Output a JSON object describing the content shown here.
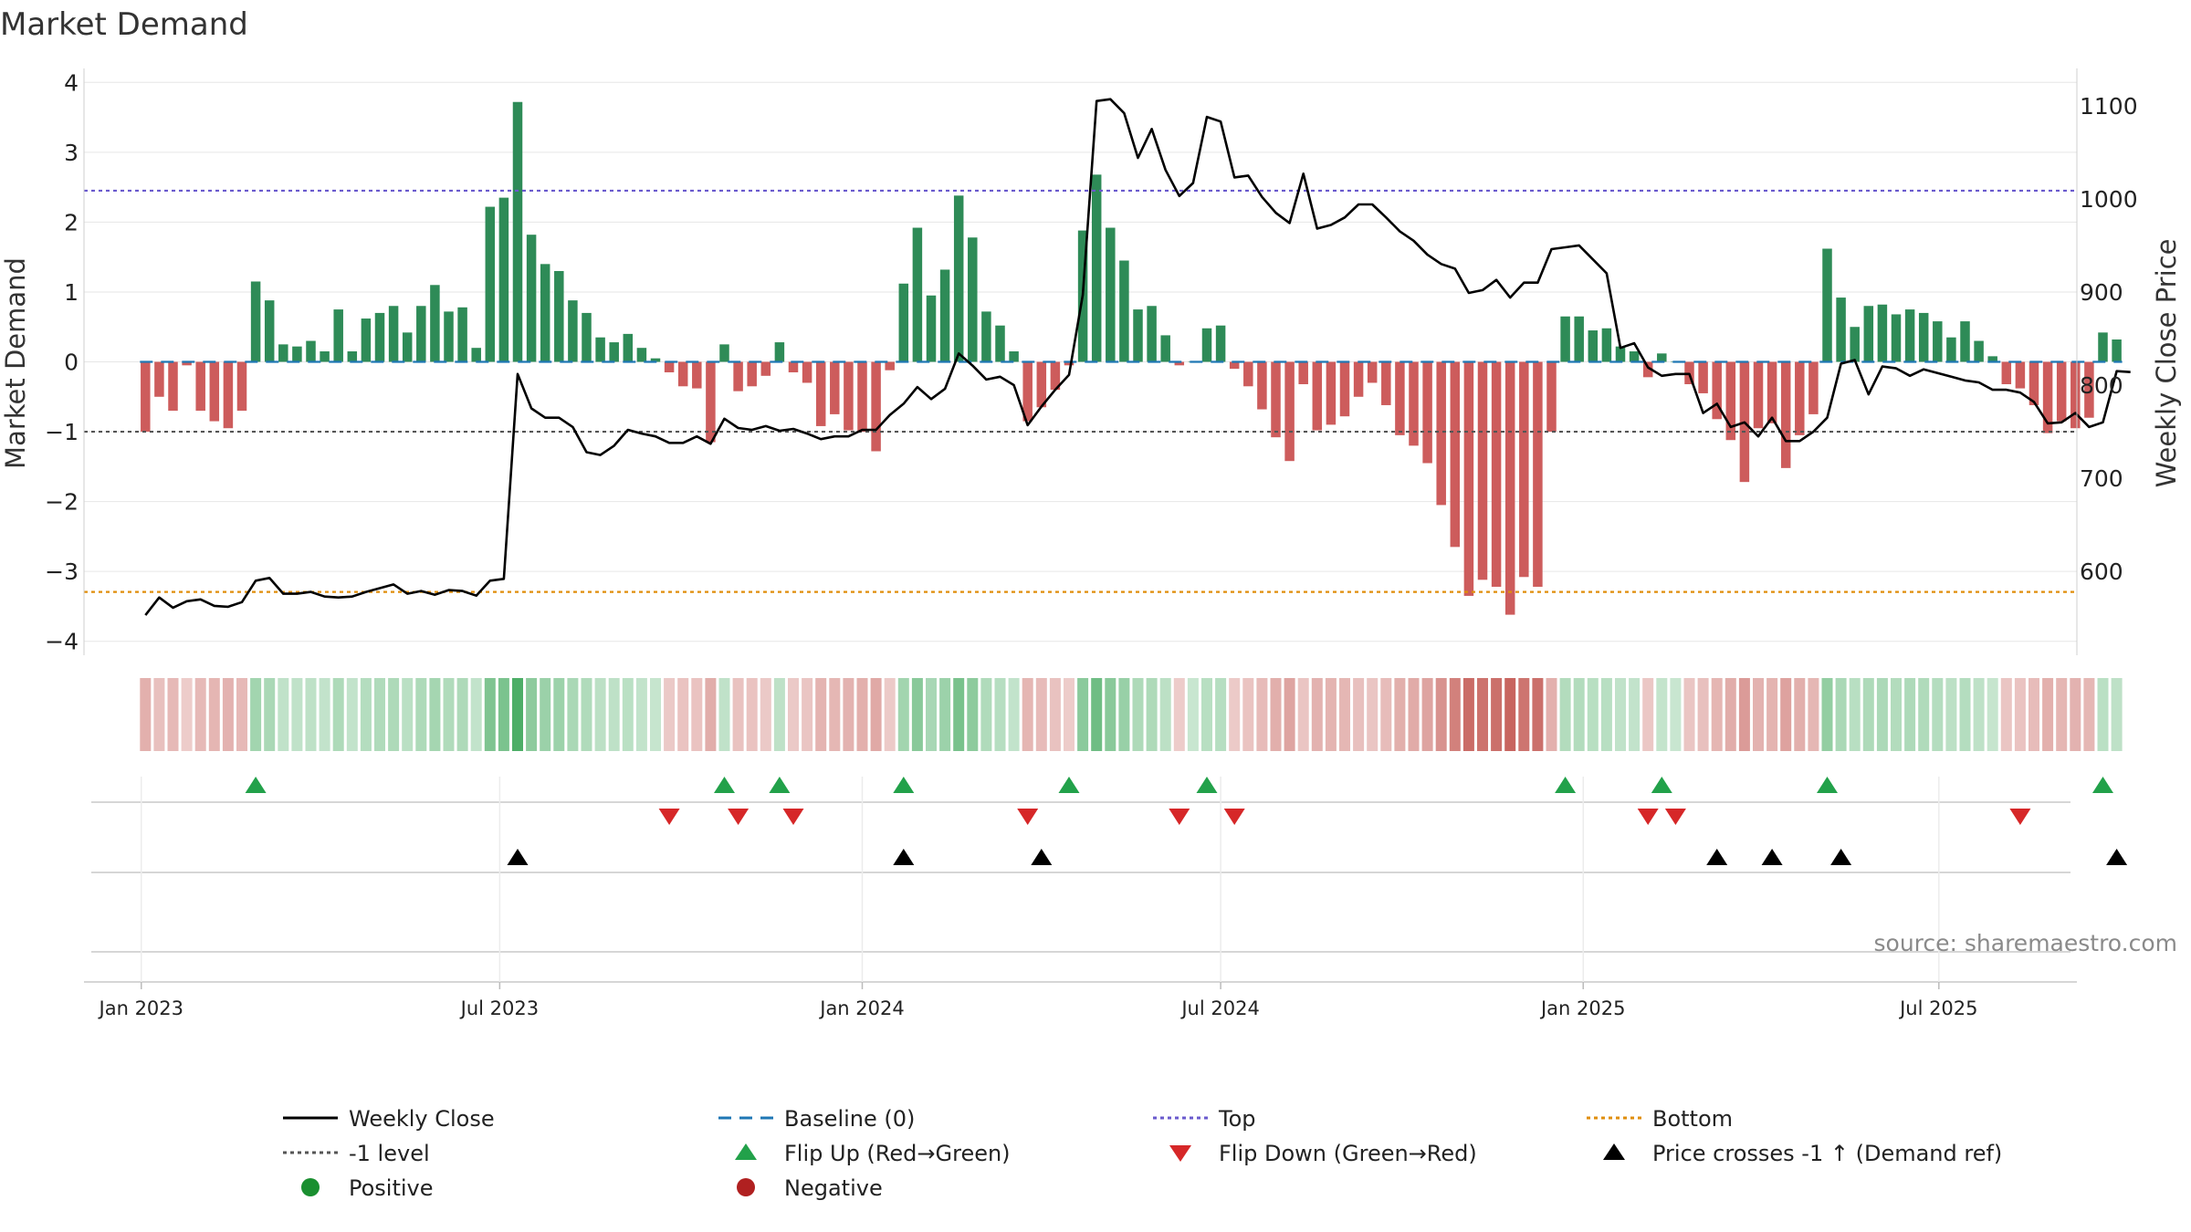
{
  "chart_data": {
    "type": "bar+line",
    "title": "Market Demand",
    "ylabel_left": "Market Demand",
    "ylabel_right": "Weekly Close Price",
    "ylim_left": [
      -4.2,
      4.2
    ],
    "ylim_right": [
      510,
      1140
    ],
    "yticks_left": [
      "4",
      "3",
      "2",
      "1",
      "0",
      "−1",
      "−2",
      "−3",
      "−4"
    ],
    "ytick_values_left": [
      4,
      3,
      2,
      1,
      0,
      -1,
      -2,
      -3,
      -4
    ],
    "yticks_right": [
      "1100",
      "1000",
      "900",
      "800",
      "700",
      "600"
    ],
    "ytick_values_right": [
      1100,
      1000,
      900,
      800,
      700,
      600
    ],
    "x_range_weeks": [
      -3,
      147
    ],
    "x_ticks": [
      {
        "label": "Jan 2023",
        "week": -0.3
      },
      {
        "label": "Jul 2023",
        "week": 25.7
      },
      {
        "label": "Jan 2024",
        "week": 52
      },
      {
        "label": "Jul 2024",
        "week": 78
      },
      {
        "label": "Jan 2025",
        "week": 104.3
      },
      {
        "label": "Jul 2025",
        "week": 130.1
      }
    ],
    "reference_lines": {
      "top": 2.45,
      "minus_one": -1,
      "bottom_price": 578,
      "baseline": 0
    },
    "demand": [
      -1.0,
      -0.5,
      -0.7,
      -0.05,
      -0.7,
      -0.85,
      -0.95,
      -0.7,
      1.15,
      0.88,
      0.25,
      0.22,
      0.3,
      0.15,
      0.75,
      0.15,
      0.62,
      0.7,
      0.8,
      0.42,
      0.8,
      1.1,
      0.72,
      0.78,
      0.2,
      2.22,
      2.35,
      3.72,
      1.82,
      1.4,
      1.3,
      0.88,
      0.7,
      0.35,
      0.28,
      0.4,
      0.2,
      0.05,
      -0.15,
      -0.35,
      -0.38,
      -1.15,
      0.25,
      -0.42,
      -0.35,
      -0.2,
      0.28,
      -0.15,
      -0.3,
      -0.92,
      -0.75,
      -0.98,
      -1.0,
      -1.28,
      -0.12,
      1.12,
      1.92,
      0.95,
      1.32,
      2.38,
      1.78,
      0.72,
      0.52,
      0.15,
      -0.85,
      -0.65,
      -0.4,
      -0.05,
      1.88,
      2.68,
      1.92,
      1.45,
      0.75,
      0.8,
      0.38,
      -0.05,
      0.0,
      0.48,
      0.52,
      -0.1,
      -0.35,
      -0.68,
      -1.08,
      -1.42,
      -0.32,
      -0.98,
      -0.9,
      -0.78,
      -0.5,
      -0.3,
      -0.62,
      -1.05,
      -1.2,
      -1.45,
      -2.05,
      -2.65,
      -3.35,
      -3.12,
      -3.22,
      -3.62,
      -3.08,
      -3.22,
      -1.0,
      0.65,
      0.65,
      0.45,
      0.48,
      0.22,
      0.15,
      -0.22,
      0.12,
      0.0,
      -0.32,
      -0.45,
      -0.82,
      -1.12,
      -1.72,
      -0.95,
      -0.88,
      -1.52,
      -1.05,
      -0.75,
      1.62,
      0.92,
      0.5,
      0.8,
      0.82,
      0.68,
      0.75,
      0.7,
      0.58,
      0.35,
      0.58,
      0.3,
      0.08,
      -0.32,
      -0.38,
      -0.62,
      -1.02,
      -0.85,
      -0.95,
      -0.8,
      0.42,
      0.32
    ],
    "weekly_close": [
      553,
      572,
      561,
      568,
      570,
      563,
      562,
      567,
      590,
      593,
      576,
      576,
      578,
      573,
      572,
      573,
      578,
      582,
      586,
      576,
      579,
      575,
      580,
      579,
      574,
      590,
      592,
      812,
      775,
      765,
      765,
      755,
      728,
      725,
      735,
      752,
      748,
      745,
      738,
      738,
      745,
      737,
      764,
      754,
      752,
      756,
      751,
      753,
      748,
      742,
      745,
      745,
      752,
      752,
      768,
      780,
      798,
      785,
      796,
      834,
      821,
      806,
      809,
      800,
      757,
      777,
      795,
      811,
      897,
      1105,
      1107,
      1092,
      1044,
      1075,
      1031,
      1003,
      1017,
      1088,
      1083,
      1023,
      1025,
      1002,
      985,
      974,
      1027,
      968,
      972,
      980,
      994,
      994,
      980,
      965,
      955,
      940,
      930,
      925,
      899,
      902,
      913,
      894,
      910,
      910,
      946,
      948,
      950,
      935,
      920,
      840,
      845,
      819,
      810,
      812,
      812,
      770,
      780,
      755,
      760,
      745,
      765,
      740,
      740,
      750,
      765,
      823,
      827,
      790,
      820,
      818,
      810,
      817,
      813,
      809,
      805,
      803,
      795,
      795,
      792,
      782,
      759,
      760,
      770,
      755,
      760,
      815,
      814
    ],
    "flip_up_weeks": [
      8,
      42,
      46,
      55,
      67,
      77,
      103,
      110,
      122,
      142
    ],
    "flip_down_weeks": [
      38,
      43,
      47,
      64,
      75,
      79,
      109,
      111,
      136
    ],
    "price_cross_weeks": [
      27,
      55,
      65,
      114,
      118,
      123,
      143
    ],
    "legend": [
      {
        "label": "Weekly Close",
        "style": "solid-line",
        "color": "#000000"
      },
      {
        "label": "Baseline (0)",
        "style": "dash-line",
        "color": "#1f77b4"
      },
      {
        "label": "Top",
        "style": "dot-line",
        "color": "#6a5acd"
      },
      {
        "label": "Bottom",
        "style": "dot-line",
        "color": "#e08e0b"
      },
      {
        "label": "-1 level",
        "style": "dot-line",
        "color": "#555555"
      },
      {
        "label": "Flip Up (Red→Green)",
        "style": "triangle-up",
        "color": "#22a14a"
      },
      {
        "label": "Flip Down (Green→Red)",
        "style": "triangle-down",
        "color": "#d62728"
      },
      {
        "label": "Price crosses -1 ↑ (Demand ref)",
        "style": "triangle-up",
        "color": "#000000"
      },
      {
        "label": "Positive",
        "style": "circle",
        "color": "#1a8f30"
      },
      {
        "label": "Negative",
        "style": "circle",
        "color": "#b02020"
      }
    ],
    "colors": {
      "positive_bar": "#2e8b57",
      "negative_bar": "#cd5c5c",
      "strip_positive": "#3aa556",
      "strip_negative": "#c0504a"
    }
  },
  "source": "source: sharemaestro.com"
}
